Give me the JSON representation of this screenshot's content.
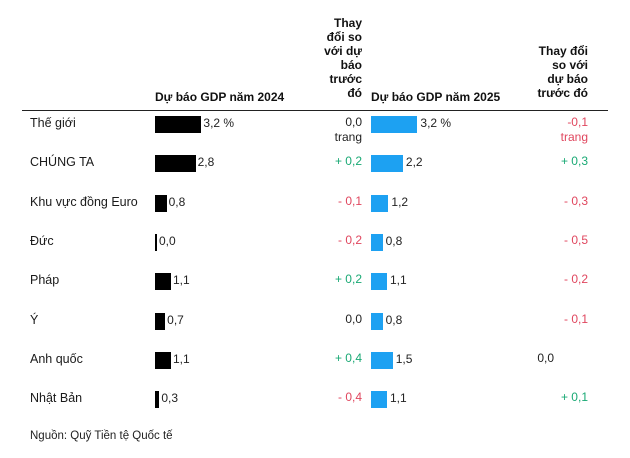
{
  "chart_data": {
    "type": "table",
    "headers": {
      "gdp_2024": "Dự báo GDP năm 2024",
      "change_2024": [
        "Thay",
        "đổi so",
        "với dự",
        "báo",
        "trước",
        "đó"
      ],
      "gdp_2025": "Dự báo GDP năm 2025",
      "change_2025": [
        "Thay đổi",
        "so với",
        "dự báo",
        "trước đó"
      ]
    },
    "rows": [
      {
        "label": "Thế giới",
        "gdp_2024": 3.2,
        "gdp_2024_text": "3,2 %",
        "change_2024": [
          "0,0",
          "trang"
        ],
        "change_2024_sign": "neu",
        "gdp_2025": 3.2,
        "gdp_2025_text": "3,2 %",
        "change_2025": [
          "-0,1",
          "trang"
        ],
        "change_2025_sign": "neg"
      },
      {
        "label": "CHÚNG TA",
        "gdp_2024": 2.8,
        "gdp_2024_text": "2,8",
        "change_2024": [
          "+ 0,2"
        ],
        "change_2024_sign": "pos",
        "gdp_2025": 2.2,
        "gdp_2025_text": "2,2",
        "change_2025": [
          "+ 0,3"
        ],
        "change_2025_sign": "pos"
      },
      {
        "label": "Khu vực đồng Euro",
        "gdp_2024": 0.8,
        "gdp_2024_text": "0,8",
        "change_2024": [
          "- 0,1"
        ],
        "change_2024_sign": "neg",
        "gdp_2025": 1.2,
        "gdp_2025_text": "1,2",
        "change_2025": [
          "- 0,3"
        ],
        "change_2025_sign": "neg"
      },
      {
        "label": "Đức",
        "gdp_2024": 0.0,
        "gdp_2024_text": "0,0",
        "change_2024": [
          "- 0,2"
        ],
        "change_2024_sign": "neg",
        "gdp_2025": 0.8,
        "gdp_2025_text": "0,8",
        "change_2025": [
          "- 0,5"
        ],
        "change_2025_sign": "neg"
      },
      {
        "label": "Pháp",
        "gdp_2024": 1.1,
        "gdp_2024_text": "1,1",
        "change_2024": [
          "+ 0,2"
        ],
        "change_2024_sign": "pos",
        "gdp_2025": 1.1,
        "gdp_2025_text": "1,1",
        "change_2025": [
          "- 0,2"
        ],
        "change_2025_sign": "neg"
      },
      {
        "label": "Ý",
        "gdp_2024": 0.7,
        "gdp_2024_text": "0,7",
        "change_2024": [
          "0,0"
        ],
        "change_2024_sign": "neu",
        "gdp_2025": 0.8,
        "gdp_2025_text": "0,8",
        "change_2025": [
          "- 0,1"
        ],
        "change_2025_sign": "neg"
      },
      {
        "label": "Anh quốc",
        "gdp_2024": 1.1,
        "gdp_2024_text": "1,1",
        "change_2024": [
          "+ 0,4"
        ],
        "change_2024_sign": "pos",
        "gdp_2025": 1.5,
        "gdp_2025_text": "1,5",
        "change_2025": [
          "0,0"
        ],
        "change_2025_sign": "neu"
      },
      {
        "label": "Nhật Bản",
        "gdp_2024": 0.3,
        "gdp_2024_text": "0,3",
        "change_2024": [
          "- 0,4"
        ],
        "change_2024_sign": "neg",
        "gdp_2025": 1.1,
        "gdp_2025_text": "1,1",
        "change_2025": [
          "+ 0,1"
        ],
        "change_2025_sign": "pos"
      }
    ],
    "colors": {
      "bar_2024": "#000000",
      "bar_2025": "#1da1f2",
      "positive": "#19a974",
      "negative": "#e0465e"
    },
    "source": "Nguồn: Quỹ Tiền tệ Quốc tế"
  }
}
